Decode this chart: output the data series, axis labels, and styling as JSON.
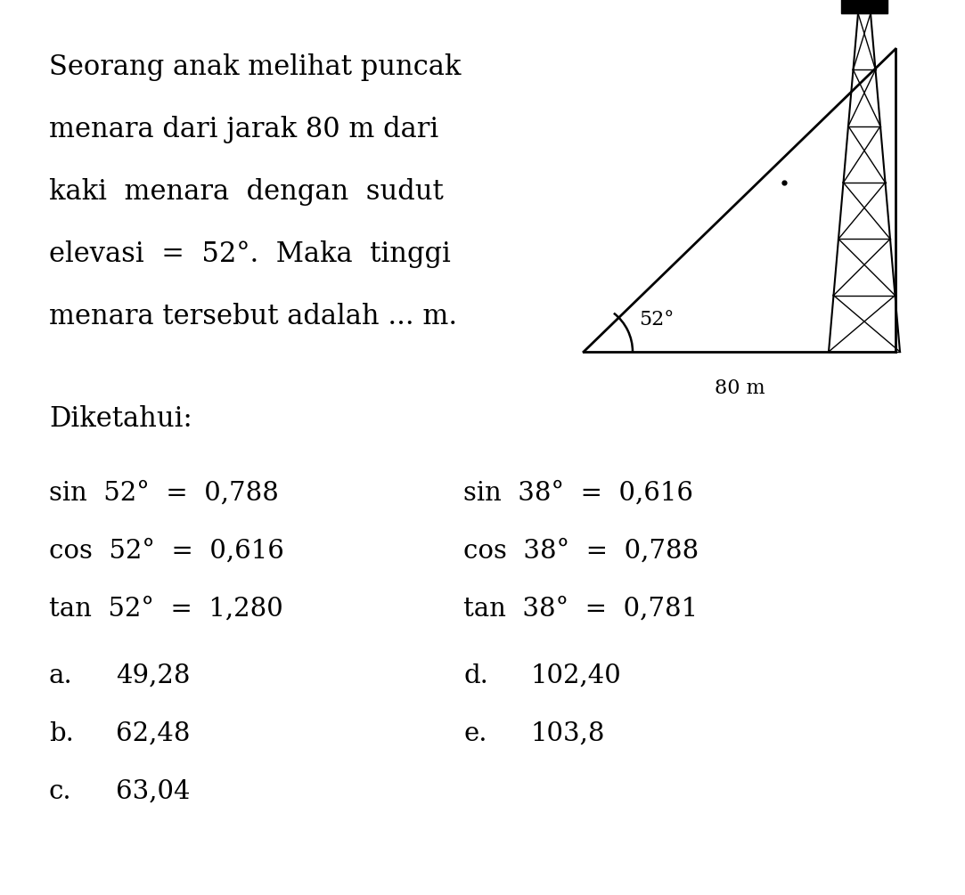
{
  "title_lines": [
    "Seorang anak melihat puncak",
    "menara dari jarak 80 m dari",
    "kaki  menara  dengan  sudut",
    "elevasi  =  52°.  Maka  tinggi",
    "menara tersebut adalah ... m."
  ],
  "diketahui_label": "Diketahui:",
  "trig_left": [
    "sin  52°  =  0,788",
    "cos  52°  =  0,616",
    "tan  52°  =  1,280"
  ],
  "trig_right": [
    "sin  38°  =  0,616",
    "cos  38°  =  0,788",
    "tan  38°  =  0,781"
  ],
  "choices_left": [
    [
      "a.",
      "49,28"
    ],
    [
      "b.",
      "62,48"
    ],
    [
      "c.",
      "63,04"
    ]
  ],
  "choices_right": [
    [
      "d.",
      "102,40"
    ],
    [
      "e.",
      "103,8"
    ]
  ],
  "angle_label": "52°",
  "base_label": "80 m",
  "background_color": "#ffffff",
  "text_color": "#000000",
  "font_size_main": 22,
  "font_size_trig": 21,
  "font_size_choices": 21,
  "font_size_diagram": 15
}
